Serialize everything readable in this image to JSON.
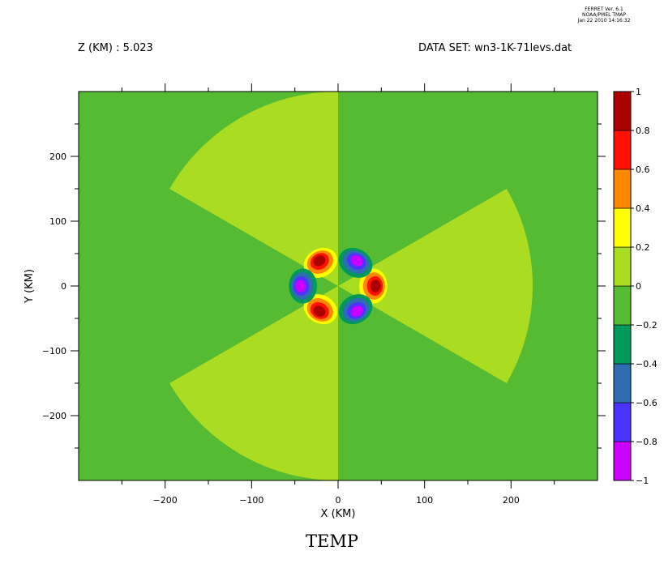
{
  "header": {
    "ferret_info": [
      "FERRET Ver. 6.1",
      "NOAA/PMEL TMAP",
      "Jan 22 2010 14:16:32"
    ],
    "z_label": "Z (KM) : 5.023",
    "dataset_label": "DATA SET: wn3-1K-71levs.dat"
  },
  "chart_data": {
    "type": "heatmap",
    "title": "TEMP",
    "xlabel": "X (KM)",
    "ylabel": "Y (KM)",
    "xlim": [
      -300,
      300
    ],
    "ylim": [
      -300,
      300
    ],
    "x_ticks": [
      -200,
      -100,
      0,
      100,
      200
    ],
    "y_ticks": [
      -200,
      -100,
      0,
      100,
      200
    ],
    "x_tick_labels": [
      "−200",
      "−100",
      "0",
      "100",
      "200"
    ],
    "y_tick_labels": [
      "200",
      "100",
      "0",
      "−100",
      "−200"
    ],
    "colorbar": {
      "levels": [
        -1,
        -0.8,
        -0.6,
        -0.4,
        -0.2,
        0,
        0.2,
        0.4,
        0.6,
        0.8,
        1
      ],
      "level_labels": [
        "1",
        "0.8",
        "0.6",
        "0.4",
        "0.2",
        "0",
        "−0.2",
        "−0.4",
        "−0.6",
        "−0.8",
        "−1"
      ],
      "colors": [
        "#cc00ff",
        "#4d33ff",
        "#2e6eb0",
        "#00995c",
        "#55bb33",
        "#aadd22",
        "#ffff00",
        "#ff8800",
        "#ff1100",
        "#aa0000"
      ]
    },
    "background_value": -0.1,
    "sectors": {
      "value": 0.1,
      "radius_km": 225,
      "azimuth_centers_deg": [
        0,
        120,
        240
      ],
      "half_width_deg": 30
    },
    "lobes": [
      {
        "x": 40,
        "y": 0,
        "peak": 1.0
      },
      {
        "x": -20,
        "y": 35,
        "peak": 1.0
      },
      {
        "x": -20,
        "y": -35,
        "peak": 1.0
      },
      {
        "x": -40,
        "y": 0,
        "peak": -1.0
      },
      {
        "x": 20,
        "y": 35,
        "peak": -1.0
      },
      {
        "x": 20,
        "y": -35,
        "peak": -1.0
      }
    ]
  }
}
